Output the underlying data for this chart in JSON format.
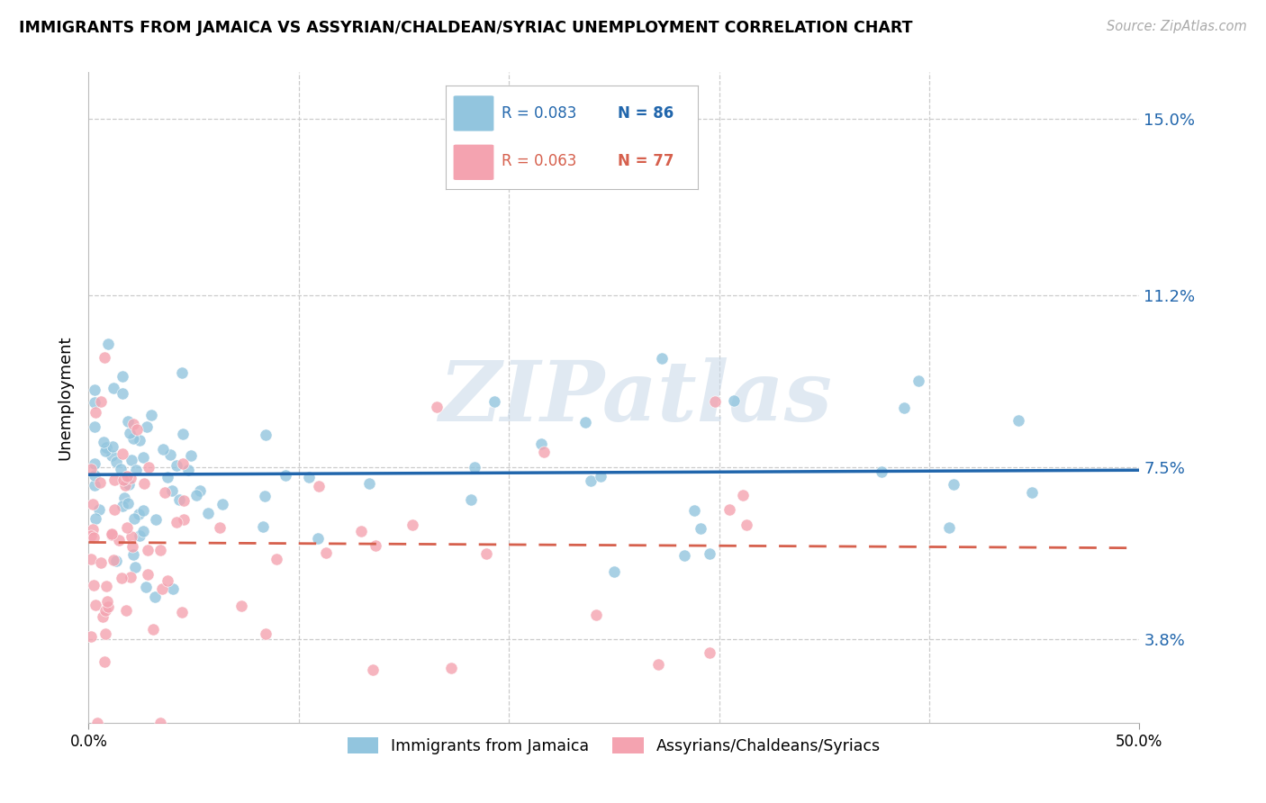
{
  "title": "IMMIGRANTS FROM JAMAICA VS ASSYRIAN/CHALDEAN/SYRIAC UNEMPLOYMENT CORRELATION CHART",
  "source": "Source: ZipAtlas.com",
  "ylabel": "Unemployment",
  "yticks": [
    3.8,
    7.5,
    11.2,
    15.0
  ],
  "ytick_labels": [
    "3.8%",
    "7.5%",
    "11.2%",
    "15.0%"
  ],
  "xlim": [
    0.0,
    50.0
  ],
  "ylim": [
    2.0,
    16.0
  ],
  "legend_label_blue": "Immigrants from Jamaica",
  "legend_label_pink": "Assyrians/Chaldeans/Syriacs",
  "blue_color": "#92c5de",
  "pink_color": "#f4a3b0",
  "blue_line_color": "#2166ac",
  "pink_line_color": "#d6604d",
  "watermark": "ZIPatlas",
  "grid_color": "#cccccc",
  "blue_r": "R = 0.083",
  "blue_n": "N = 86",
  "pink_r": "R = 0.063",
  "pink_n": "N = 77"
}
